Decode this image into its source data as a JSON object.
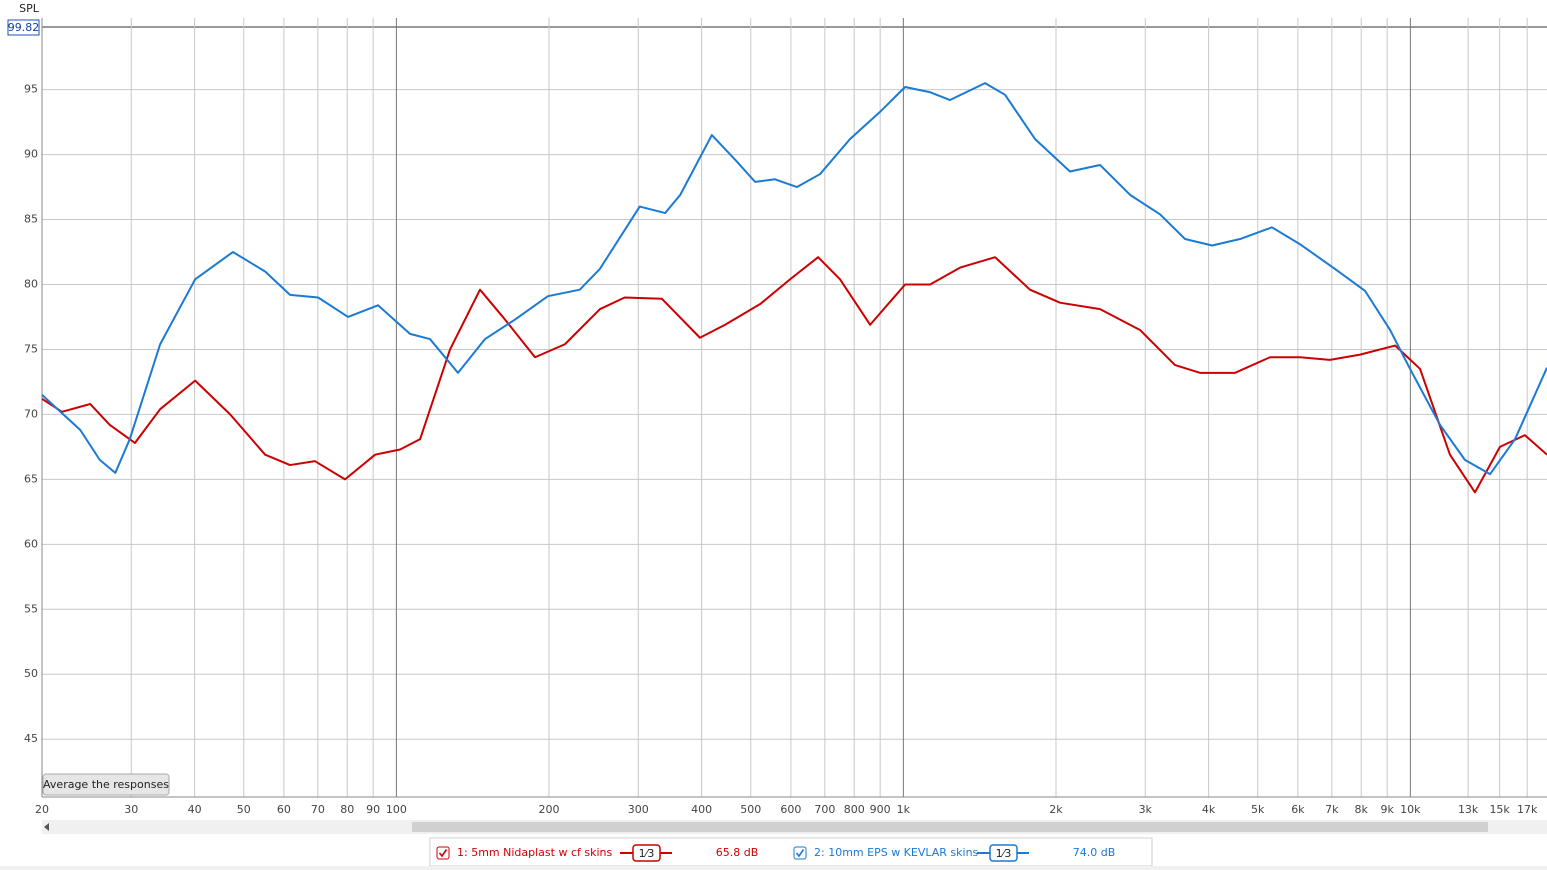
{
  "chart_data": {
    "type": "line",
    "y_label": "SPL",
    "xscale": "log",
    "grid": true,
    "xlim": [
      20,
      18600
    ],
    "ylim": [
      40.55,
      99.82
    ],
    "yticks": [
      45,
      50,
      55,
      60,
      65,
      70,
      75,
      80,
      85,
      90,
      95
    ],
    "xticks": [
      20,
      30,
      40,
      50,
      60,
      70,
      80,
      90,
      100,
      200,
      300,
      400,
      500,
      600,
      700,
      800,
      900,
      {
        "value": 1000,
        "label": "1k"
      },
      {
        "value": 2000,
        "label": "2k"
      },
      {
        "value": 3000,
        "label": "3k"
      },
      {
        "value": 4000,
        "label": "4k"
      },
      {
        "value": 5000,
        "label": "5k"
      },
      {
        "value": 6000,
        "label": "6k"
      },
      {
        "value": 7000,
        "label": "7k"
      },
      {
        "value": 8000,
        "label": "8k"
      },
      {
        "value": 9000,
        "label": "9k"
      },
      {
        "value": 10000,
        "label": "10k"
      },
      {
        "value": 13000,
        "label": "13k"
      },
      {
        "value": 15000,
        "label": "15k"
      },
      {
        "value": 17000,
        "label": "17k"
      }
    ],
    "button": "Average the responses",
    "series": [
      {
        "name": "1: 5mm Nidaplast w cf skins",
        "color": "#cc0000",
        "smoothing": "1⁄3",
        "level": "65.8 dB",
        "x": [
          20,
          21.9,
          24.9,
          27.2,
          30.5,
          34.2,
          40.1,
          47.0,
          55.1,
          61.7,
          69.1,
          79.2,
          90.8,
          101.7,
          111.4,
          127.6,
          146.2,
          163.8,
          187.7,
          215,
          252,
          282,
          334,
          397,
          445,
          522,
          598,
          679,
          750,
          860,
          1008,
          1129,
          1294,
          1517,
          1777,
          2037,
          2443,
          2929,
          3434,
          3846,
          4511,
          5286,
          6058,
          6941,
          7959,
          9332,
          10450,
          11970,
          13410,
          15020,
          16830,
          18600
        ],
        "values": [
          71.2,
          70.2,
          70.8,
          69.2,
          67.8,
          70.4,
          72.6,
          70.0,
          66.9,
          66.1,
          66.4,
          65.0,
          66.9,
          67.3,
          68.1,
          75.0,
          79.6,
          77.3,
          74.4,
          75.4,
          78.1,
          79.0,
          78.9,
          75.9,
          76.9,
          78.5,
          80.4,
          82.1,
          80.4,
          76.9,
          80.0,
          80.0,
          81.3,
          82.1,
          79.6,
          78.6,
          78.1,
          76.5,
          73.8,
          73.2,
          73.2,
          74.4,
          74.4,
          74.2,
          74.6,
          75.3,
          73.5,
          66.9,
          64.0,
          67.5,
          68.4,
          66.9
        ]
      },
      {
        "name": "2: 10mm EPS w KEVLAR skins",
        "color": "#1a7ad4",
        "smoothing": "1⁄3",
        "level": "74.0 dB",
        "x": [
          20,
          23.8,
          26.0,
          27.9,
          29.8,
          34.2,
          40.1,
          47.6,
          55.1,
          61.7,
          70.1,
          80.3,
          92.0,
          106.4,
          116.5,
          132.3,
          149.6,
          171.4,
          199,
          230,
          252,
          302,
          339,
          363,
          419,
          466,
          510,
          558,
          617,
          685,
          785,
          900,
          1008,
          1129,
          1236,
          1449,
          1587,
          1818,
          2131,
          2443,
          2800,
          3208,
          3594,
          4064,
          4614,
          5333,
          6058,
          7101,
          8143,
          9120,
          9988,
          11440,
          12810,
          14360,
          16090,
          18600
        ],
        "values": [
          71.5,
          68.8,
          66.5,
          65.5,
          68.1,
          75.4,
          80.4,
          82.5,
          81.0,
          79.2,
          79.0,
          77.5,
          78.4,
          76.2,
          75.8,
          73.2,
          75.8,
          77.3,
          79.1,
          79.6,
          81.2,
          86.0,
          85.5,
          86.9,
          91.5,
          89.6,
          87.9,
          88.1,
          87.5,
          88.5,
          91.2,
          93.3,
          95.2,
          94.8,
          94.2,
          95.5,
          94.6,
          91.2,
          88.7,
          89.2,
          86.9,
          85.4,
          83.5,
          83.0,
          83.5,
          84.4,
          83.1,
          81.2,
          79.5,
          76.5,
          73.5,
          69.2,
          66.5,
          65.4,
          68.1,
          73.6
        ]
      }
    ]
  }
}
